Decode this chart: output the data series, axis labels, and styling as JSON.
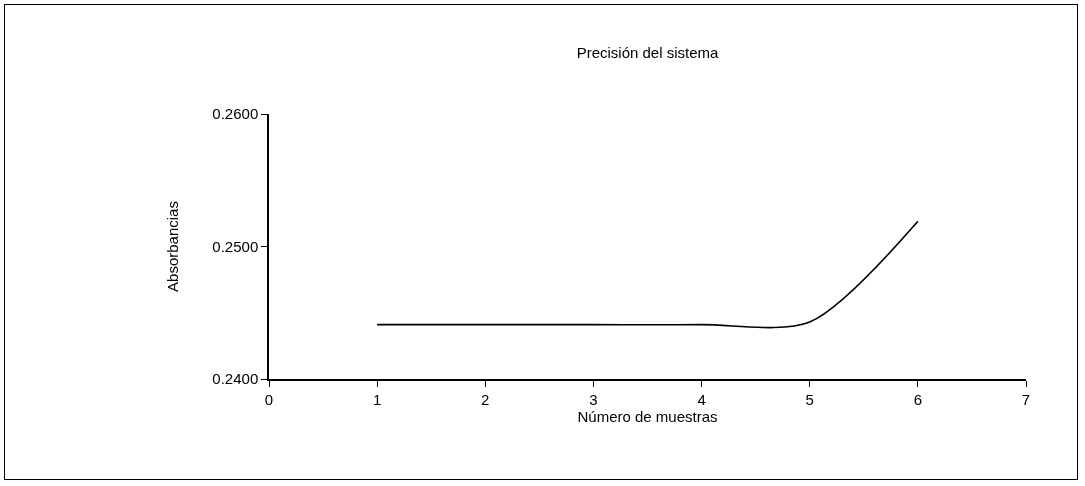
{
  "chart_data": {
    "type": "line",
    "title": "Precisión del sistema",
    "xlabel": "Número de muestras",
    "ylabel": "Absorbancias",
    "x": [
      1,
      2,
      3,
      4,
      5,
      6
    ],
    "series": [
      {
        "color": "#000000",
        "values": [
          0.2441,
          0.2441,
          0.2441,
          0.2441,
          0.2443,
          0.2519
        ]
      }
    ],
    "xlim": [
      0,
      7
    ],
    "xticks": [
      0,
      1,
      2,
      3,
      4,
      5,
      6,
      7
    ],
    "ylim": [
      0.24,
      0.26
    ],
    "yticks": [
      {
        "value": 0.24,
        "label": "0.2400"
      },
      {
        "value": 0.25,
        "label": "0.2500"
      },
      {
        "value": 0.26,
        "label": "0.2600"
      }
    ],
    "grid": false,
    "marker": "none",
    "line_style": "solid"
  }
}
